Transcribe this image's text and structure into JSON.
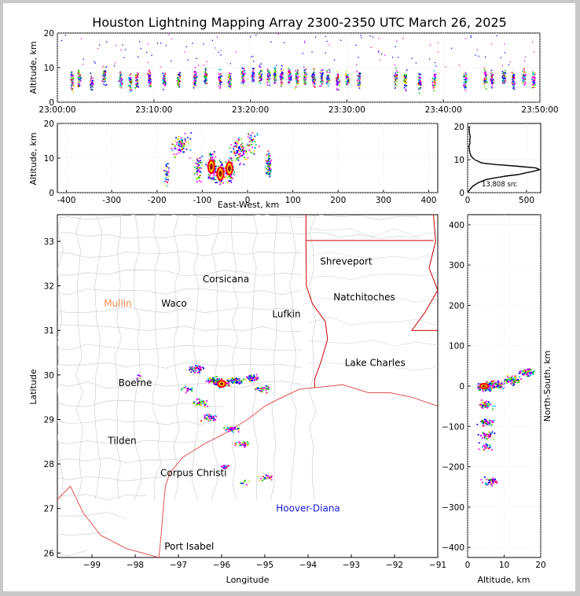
{
  "title": "Houston Lightning Mapping Array 2300-2350 UTC March 26, 2025",
  "chart_data": [
    {
      "id": "time-height",
      "type": "scatter",
      "ylabel": "Altitude, km",
      "ylim": [
        0,
        20
      ],
      "yticks": [
        0,
        10,
        20
      ],
      "xticks": [
        "23:00:00",
        "23:10:00",
        "23:20:00",
        "23:30:00",
        "23:40:00",
        "23:50:00"
      ],
      "xlim_minutes": [
        0,
        50
      ],
      "clusters": [
        {
          "t": 1.5,
          "z": 6.5
        },
        {
          "t": 2.2,
          "z": 7
        },
        {
          "t": 3.5,
          "z": 6
        },
        {
          "t": 4.8,
          "z": 7.5
        },
        {
          "t": 6.5,
          "z": 6.5
        },
        {
          "t": 7.5,
          "z": 6
        },
        {
          "t": 8.2,
          "z": 6.5
        },
        {
          "t": 9.5,
          "z": 7
        },
        {
          "t": 11,
          "z": 6.5
        },
        {
          "t": 12.5,
          "z": 6.5
        },
        {
          "t": 14.2,
          "z": 7
        },
        {
          "t": 15.3,
          "z": 7
        },
        {
          "t": 16.8,
          "z": 7
        },
        {
          "t": 17.8,
          "z": 6.5
        },
        {
          "t": 19.2,
          "z": 7.5
        },
        {
          "t": 20.2,
          "z": 8
        },
        {
          "t": 21,
          "z": 8
        },
        {
          "t": 21.8,
          "z": 8
        },
        {
          "t": 22.5,
          "z": 8
        },
        {
          "t": 23.2,
          "z": 7.5
        },
        {
          "t": 24,
          "z": 7.5
        },
        {
          "t": 24.8,
          "z": 7
        },
        {
          "t": 25.6,
          "z": 7.5
        },
        {
          "t": 26.5,
          "z": 7
        },
        {
          "t": 27.3,
          "z": 7
        },
        {
          "t": 28,
          "z": 7
        },
        {
          "t": 29,
          "z": 6.5
        },
        {
          "t": 30,
          "z": 6.5
        },
        {
          "t": 31.2,
          "z": 6.5
        },
        {
          "t": 35,
          "z": 7
        },
        {
          "t": 36,
          "z": 6.5
        },
        {
          "t": 37.5,
          "z": 6
        },
        {
          "t": 39,
          "z": 6
        },
        {
          "t": 42.2,
          "z": 6.5
        },
        {
          "t": 44.3,
          "z": 7
        },
        {
          "t": 45,
          "z": 7
        },
        {
          "t": 46.2,
          "z": 7
        },
        {
          "t": 47.2,
          "z": 6.5
        },
        {
          "t": 48.3,
          "z": 7
        },
        {
          "t": 49.3,
          "z": 6.5
        }
      ]
    },
    {
      "id": "ew-altitude",
      "type": "scatter",
      "xlabel": "East-West, km",
      "ylabel": "Altitude, km",
      "xlim": [
        -420,
        420
      ],
      "ylim": [
        0,
        20
      ],
      "xticks": [
        -400,
        -300,
        -200,
        -100,
        0,
        100,
        200,
        300,
        400
      ],
      "yticks": [
        0,
        10,
        20
      ],
      "clusters": [
        {
          "x": -180,
          "z": 6,
          "w": 8,
          "n": 30
        },
        {
          "x": -150,
          "z": 14,
          "w": 30,
          "n": 80
        },
        {
          "x": -110,
          "z": 7,
          "w": 10,
          "n": 60
        },
        {
          "x": -80,
          "z": 7.5,
          "w": 14,
          "n": 140
        },
        {
          "x": -60,
          "z": 6,
          "w": 14,
          "n": 80
        },
        {
          "x": -40,
          "z": 7,
          "w": 12,
          "n": 90
        },
        {
          "x": -20,
          "z": 12,
          "w": 25,
          "n": 90
        },
        {
          "x": 45,
          "z": 8,
          "w": 8,
          "n": 90
        },
        {
          "x": 10,
          "z": 15,
          "w": 20,
          "n": 40
        }
      ]
    },
    {
      "id": "altitude-histogram",
      "type": "line",
      "xlim": [
        0,
        620
      ],
      "ylim": [
        0,
        21
      ],
      "xticks": [
        0,
        500
      ],
      "yticks": [
        0,
        10,
        20
      ],
      "label": "13,808 src",
      "series": [
        {
          "altitude": [
            0,
            1,
            2,
            3,
            4,
            5,
            5.5,
            6,
            6.5,
            7,
            7.5,
            8,
            8.5,
            9,
            10,
            11,
            12,
            13,
            14,
            15,
            16,
            17,
            18,
            19,
            20
          ],
          "count": [
            0,
            20,
            45,
            90,
            160,
            320,
            430,
            490,
            560,
            610,
            580,
            430,
            250,
            120,
            60,
            30,
            20,
            15,
            12,
            20,
            18,
            22,
            16,
            14,
            12
          ]
        }
      ]
    },
    {
      "id": "plan-view",
      "type": "scatter",
      "xlabel": "Longitude",
      "ylabel": "Latitude",
      "xlim": [
        -99.8,
        -91
      ],
      "ylim": [
        25.9,
        33.6
      ],
      "xticks": [
        -99,
        -98,
        -97,
        -96,
        -95,
        -94,
        -93,
        -92,
        -91
      ],
      "yticks": [
        26,
        27,
        28,
        29,
        30,
        31,
        32,
        33
      ],
      "cities": [
        {
          "name": "Shreveport",
          "lon": -93.12,
          "lat": 32.55,
          "color": "#000000"
        },
        {
          "name": "Corsicana",
          "lon": -95.9,
          "lat": 32.15,
          "color": "#000000"
        },
        {
          "name": "Natchitoches",
          "lon": -92.7,
          "lat": 31.75,
          "color": "#000000"
        },
        {
          "name": "Mullin",
          "lon": -98.4,
          "lat": 31.6,
          "color": "#f08a4b"
        },
        {
          "name": "Waco",
          "lon": -97.1,
          "lat": 31.6,
          "color": "#000000"
        },
        {
          "name": "Lufkin",
          "lon": -94.5,
          "lat": 31.37,
          "color": "#000000"
        },
        {
          "name": "Lake Charles",
          "lon": -92.45,
          "lat": 30.27,
          "color": "#000000"
        },
        {
          "name": "Boerne",
          "lon": -98.0,
          "lat": 29.82,
          "color": "#000000"
        },
        {
          "name": "Tilden",
          "lon": -98.3,
          "lat": 28.52,
          "color": "#000000"
        },
        {
          "name": "Corpus Christi",
          "lon": -96.65,
          "lat": 27.8,
          "color": "#000000"
        },
        {
          "name": "Hoover-Diana",
          "lon": -94.0,
          "lat": 27.0,
          "color": "#1a1adc"
        },
        {
          "name": "Port Isabel",
          "lon": -96.75,
          "lat": 26.15,
          "color": "#000000"
        }
      ],
      "clusters": [
        {
          "lon": -96.6,
          "lat": 30.15,
          "n": 50
        },
        {
          "lon": -96.2,
          "lat": 29.9,
          "n": 70
        },
        {
          "lon": -96.0,
          "lat": 29.82,
          "n": 130
        },
        {
          "lon": -95.7,
          "lat": 29.88,
          "n": 70
        },
        {
          "lon": -95.3,
          "lat": 29.95,
          "n": 60
        },
        {
          "lon": -95.05,
          "lat": 29.7,
          "n": 40
        },
        {
          "lon": -96.5,
          "lat": 29.4,
          "n": 40
        },
        {
          "lon": -96.3,
          "lat": 29.05,
          "n": 40
        },
        {
          "lon": -96.8,
          "lat": 29.7,
          "n": 20
        },
        {
          "lon": -95.8,
          "lat": 28.8,
          "n": 40
        },
        {
          "lon": -95.55,
          "lat": 28.45,
          "n": 35
        },
        {
          "lon": -95.95,
          "lat": 27.95,
          "n": 15
        },
        {
          "lon": -95.0,
          "lat": 27.7,
          "n": 25
        },
        {
          "lon": -95.5,
          "lat": 27.6,
          "n": 10
        },
        {
          "lon": -97.9,
          "lat": 29.95,
          "n": 8
        }
      ]
    },
    {
      "id": "altitude-ns",
      "type": "scatter",
      "xlabel": "Altitude, km",
      "ylabel": "North-South, km",
      "xlim": [
        0,
        20
      ],
      "ylim": [
        -425,
        425
      ],
      "xticks": [
        0,
        10,
        20
      ],
      "yticks": [
        -400,
        -300,
        -200,
        -100,
        0,
        100,
        200,
        300,
        400
      ],
      "clusters": [
        {
          "z": 5,
          "y": 0,
          "n": 150
        },
        {
          "z": 8,
          "y": 5,
          "n": 60
        },
        {
          "z": 12,
          "y": 15,
          "n": 90
        },
        {
          "z": 16,
          "y": 35,
          "n": 70
        },
        {
          "z": 5,
          "y": -45,
          "n": 50
        },
        {
          "z": 5,
          "y": -90,
          "n": 50
        },
        {
          "z": 5,
          "y": -120,
          "n": 40
        },
        {
          "z": 5,
          "y": -150,
          "n": 25
        },
        {
          "z": 6,
          "y": -235,
          "n": 50
        }
      ]
    }
  ]
}
